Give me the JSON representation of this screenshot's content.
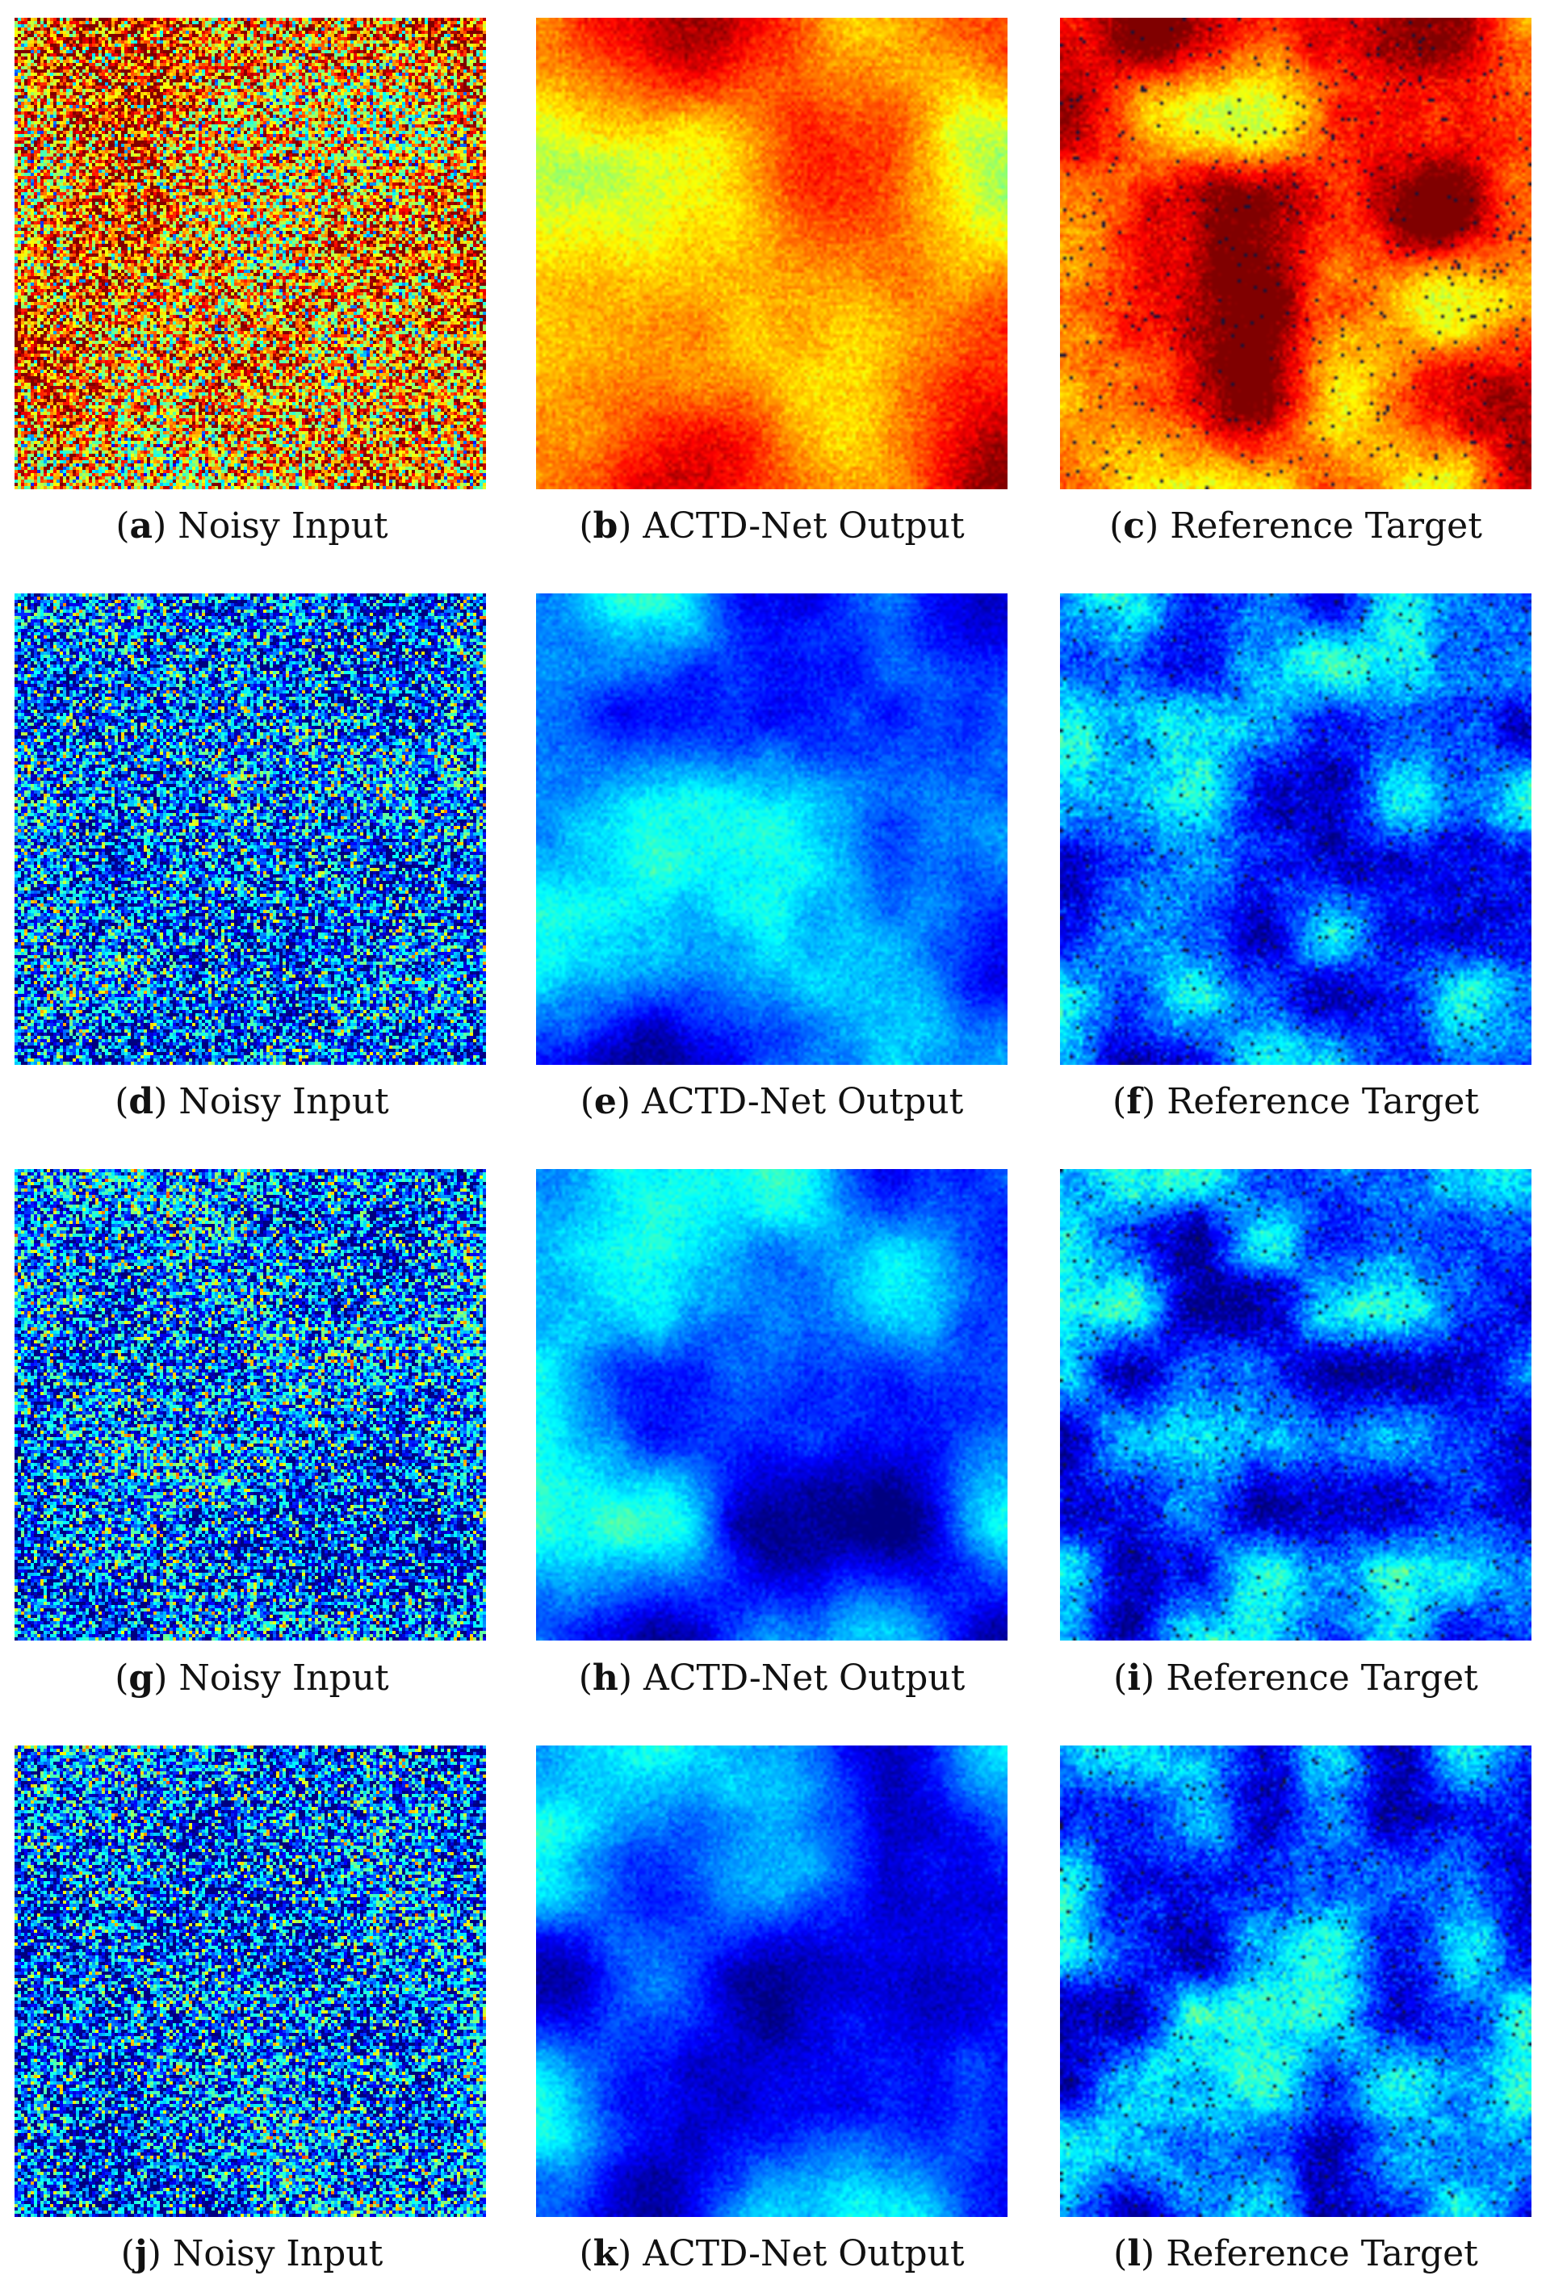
{
  "figure": {
    "columns": [
      "noisy-input",
      "actd-net-output",
      "reference-target"
    ],
    "palette": "jet",
    "panels": [
      {
        "letter": "a",
        "label": "Noisy Input",
        "theme": "noisy-warm"
      },
      {
        "letter": "b",
        "label": "ACTD-Net Output",
        "theme": "smooth-warm"
      },
      {
        "letter": "c",
        "label": "Reference Target",
        "theme": "target-warm"
      },
      {
        "letter": "d",
        "label": "Noisy Input",
        "theme": "noisy-cool"
      },
      {
        "letter": "e",
        "label": "ACTD-Net Output",
        "theme": "smooth-cool"
      },
      {
        "letter": "f",
        "label": "Reference Target",
        "theme": "target-cool"
      },
      {
        "letter": "g",
        "label": "Noisy Input",
        "theme": "noisy-cool"
      },
      {
        "letter": "h",
        "label": "ACTD-Net Output",
        "theme": "smooth-cool"
      },
      {
        "letter": "i",
        "label": "Reference Target",
        "theme": "target-cool"
      },
      {
        "letter": "j",
        "label": "Noisy Input",
        "theme": "noisy-cool"
      },
      {
        "letter": "k",
        "label": "ACTD-Net Output",
        "theme": "smooth-cool"
      },
      {
        "letter": "l",
        "label": "Reference Target",
        "theme": "target-cool"
      }
    ]
  }
}
